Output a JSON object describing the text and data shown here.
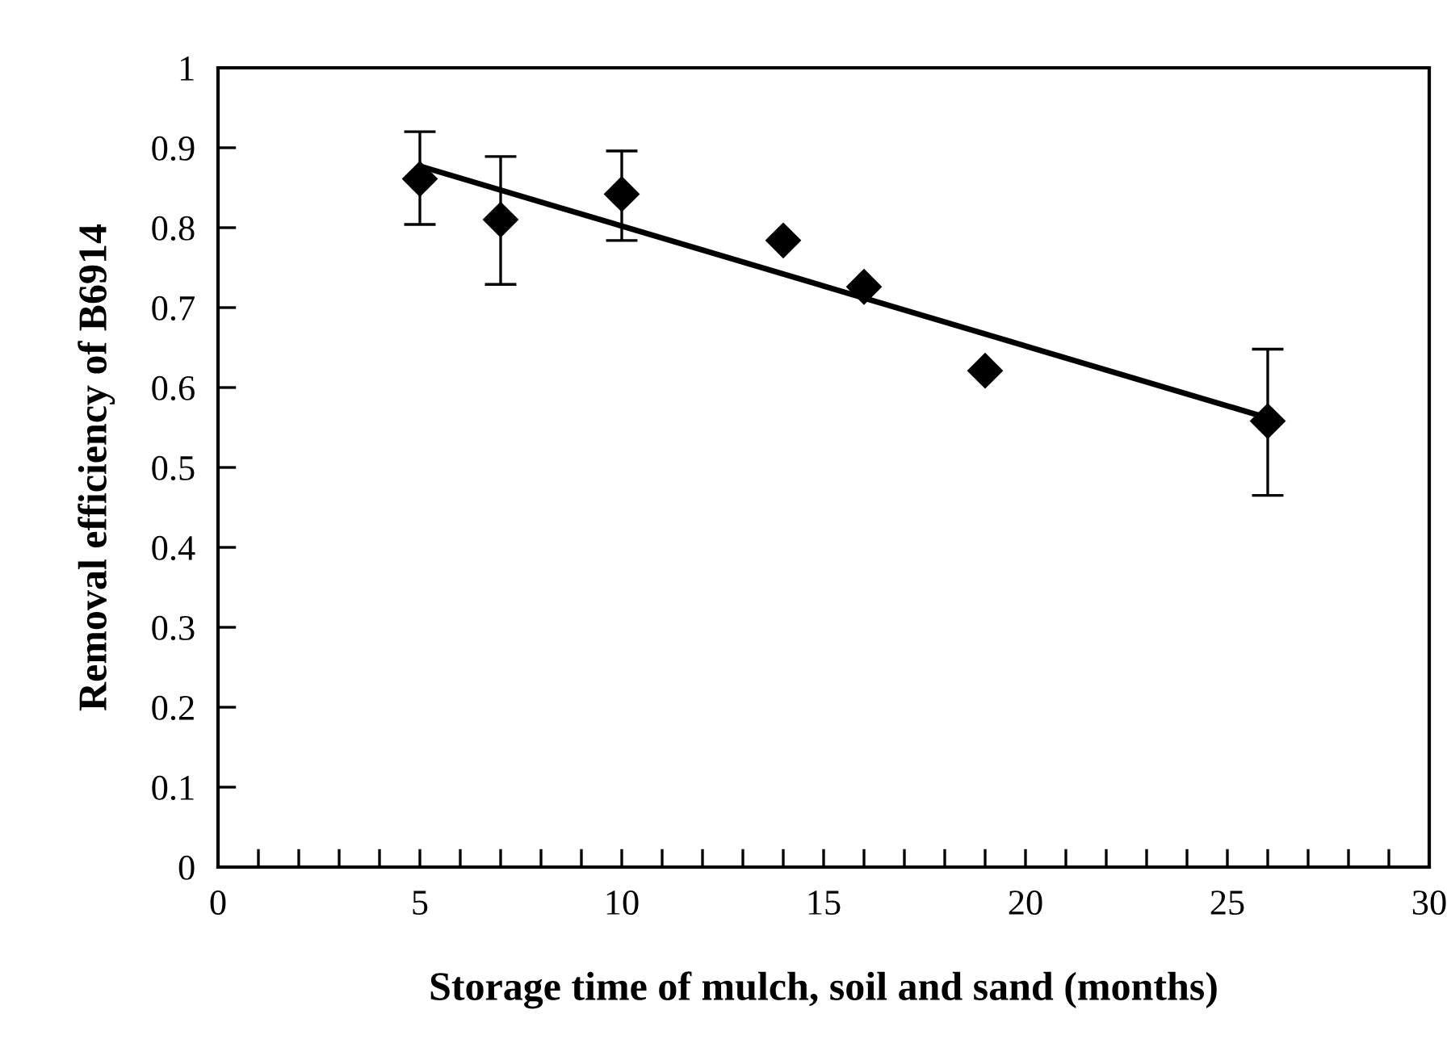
{
  "chart_data": {
    "type": "scatter",
    "xlabel": "Storage time of mulch, soil and sand (months)",
    "ylabel": "Removal efficiency of B6914",
    "series": [
      {
        "color": "#000000",
        "marker": "diamond",
        "x": [
          5,
          7,
          10,
          14,
          16,
          19,
          26
        ],
        "values": [
          0.861,
          0.81,
          0.842,
          0.784,
          0.726,
          0.621,
          0.558
        ],
        "errors": [
          [
            0.804,
            0.92
          ],
          [
            0.729,
            0.889
          ],
          [
            0.784,
            0.896
          ],
          null,
          null,
          null,
          [
            0.465,
            0.648
          ]
        ]
      },
      {
        "type": "line",
        "color": "#000000",
        "marker": "none",
        "line_style": "solid",
        "x": [
          5,
          26
        ],
        "values": [
          0.877,
          0.562
        ]
      }
    ],
    "xlim": [
      0,
      30
    ],
    "ylim": [
      0,
      1
    ],
    "xticks": [
      0,
      {
        "value": 1,
        "label": null
      },
      {
        "value": 2,
        "label": null
      },
      {
        "value": 3,
        "label": null
      },
      {
        "value": 4,
        "label": null
      },
      5,
      {
        "value": 6,
        "label": null
      },
      {
        "value": 7,
        "label": null
      },
      {
        "value": 8,
        "label": null
      },
      {
        "value": 9,
        "label": null
      },
      10,
      {
        "value": 11,
        "label": null
      },
      {
        "value": 12,
        "label": null
      },
      {
        "value": 13,
        "label": null
      },
      {
        "value": 14,
        "label": null
      },
      15,
      {
        "value": 16,
        "label": null
      },
      {
        "value": 17,
        "label": null
      },
      {
        "value": 18,
        "label": null
      },
      {
        "value": 19,
        "label": null
      },
      20,
      {
        "value": 21,
        "label": null
      },
      {
        "value": 22,
        "label": null
      },
      {
        "value": 23,
        "label": null
      },
      {
        "value": 24,
        "label": null
      },
      25,
      {
        "value": 26,
        "label": null
      },
      {
        "value": 27,
        "label": null
      },
      {
        "value": 28,
        "label": null
      },
      {
        "value": 29,
        "label": null
      },
      30
    ],
    "yticks": [
      0,
      0.1,
      0.2,
      0.3,
      0.4,
      0.5,
      0.6,
      0.7,
      0.8,
      0.9,
      1
    ],
    "grid": false,
    "legend": false
  }
}
